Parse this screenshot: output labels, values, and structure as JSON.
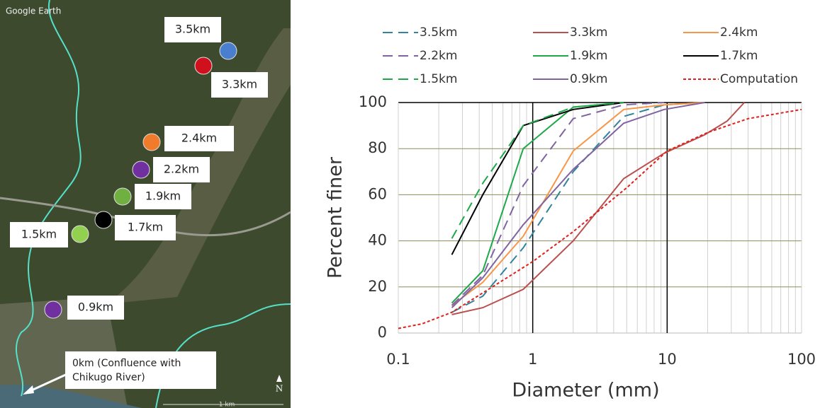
{
  "map": {
    "attribution": "Google Earth",
    "labels": [
      "3.5km",
      "3.3km",
      "2.4km",
      "2.2km",
      "1.9km",
      "1.7km",
      "1.5km",
      "0.9km"
    ],
    "confluence": [
      "0km (Confluence with",
      "Chikugo River)"
    ],
    "north": "N",
    "scale": "1 km"
  },
  "chart_data": {
    "type": "line",
    "xlabel": "Diameter (mm)",
    "ylabel": "Percent finer",
    "log_x": true,
    "grid": true,
    "xlim": [
      0.1,
      100
    ],
    "xticks": [
      0.1,
      1,
      10,
      100
    ],
    "xminorticks": [
      0.2,
      0.3,
      0.4,
      0.5,
      0.6,
      0.7,
      0.8,
      0.9,
      2,
      3,
      4,
      5,
      6,
      7,
      8,
      9,
      20,
      30,
      40,
      50,
      60,
      70,
      80,
      90
    ],
    "ylim": [
      0,
      100
    ],
    "yticks": [
      0,
      20,
      40,
      60,
      80,
      100
    ],
    "series": [
      {
        "name": "3.5km",
        "color": "#31849b",
        "dash": "dash",
        "x": [
          0.25,
          0.425,
          0.85,
          2,
          4.75,
          9.5,
          19
        ],
        "values": [
          9,
          16,
          37,
          70,
          94,
          99,
          100
        ]
      },
      {
        "name": "3.3km",
        "color": "#b9504f",
        "dash": "solid",
        "x": [
          0.25,
          0.425,
          0.85,
          2,
          4.75,
          9.5,
          19,
          28,
          37.5
        ],
        "values": [
          8,
          11,
          19,
          40,
          67,
          78,
          86,
          92,
          100
        ]
      },
      {
        "name": "2.4km",
        "color": "#f79646",
        "dash": "solid",
        "x": [
          0.25,
          0.425,
          0.85,
          2,
          4.75,
          9.5,
          19
        ],
        "values": [
          12,
          22,
          42,
          79,
          97,
          99,
          100
        ]
      },
      {
        "name": "2.2km",
        "color": "#8064a2",
        "dash": "dash",
        "x": [
          0.25,
          0.425,
          0.85,
          2,
          4.75,
          9.5
        ],
        "values": [
          12,
          25,
          64,
          93,
          99,
          100
        ]
      },
      {
        "name": "1.9km",
        "color": "#1fa84a",
        "dash": "solid",
        "x": [
          0.25,
          0.425,
          0.85,
          2,
          4.75
        ],
        "values": [
          13,
          27,
          80,
          98,
          100
        ]
      },
      {
        "name": "1.7km",
        "color": "#000000",
        "dash": "solid",
        "x": [
          0.25,
          0.425,
          0.85,
          2,
          4.75
        ],
        "values": [
          34,
          60,
          90,
          97,
          100
        ]
      },
      {
        "name": "1.5km",
        "color": "#1fa84a",
        "dash": "dash",
        "x": [
          0.25,
          0.425,
          0.85,
          2,
          4.75
        ],
        "values": [
          41,
          65,
          90,
          98,
          100
        ]
      },
      {
        "name": "0.9km",
        "color": "#8064a2",
        "dash": "solid",
        "x": [
          0.25,
          0.425,
          0.85,
          2,
          4.75,
          9.5,
          19
        ],
        "values": [
          11,
          24,
          47,
          71,
          91,
          97,
          100
        ]
      },
      {
        "name": "Computation",
        "color": "#e0201c",
        "dash": "dot",
        "x": [
          0.1,
          0.15,
          0.25,
          0.5,
          1,
          2,
          5,
          10,
          20,
          40,
          100
        ],
        "values": [
          2,
          4,
          9,
          20,
          31,
          44,
          63,
          79,
          87,
          93,
          97
        ]
      }
    ]
  }
}
